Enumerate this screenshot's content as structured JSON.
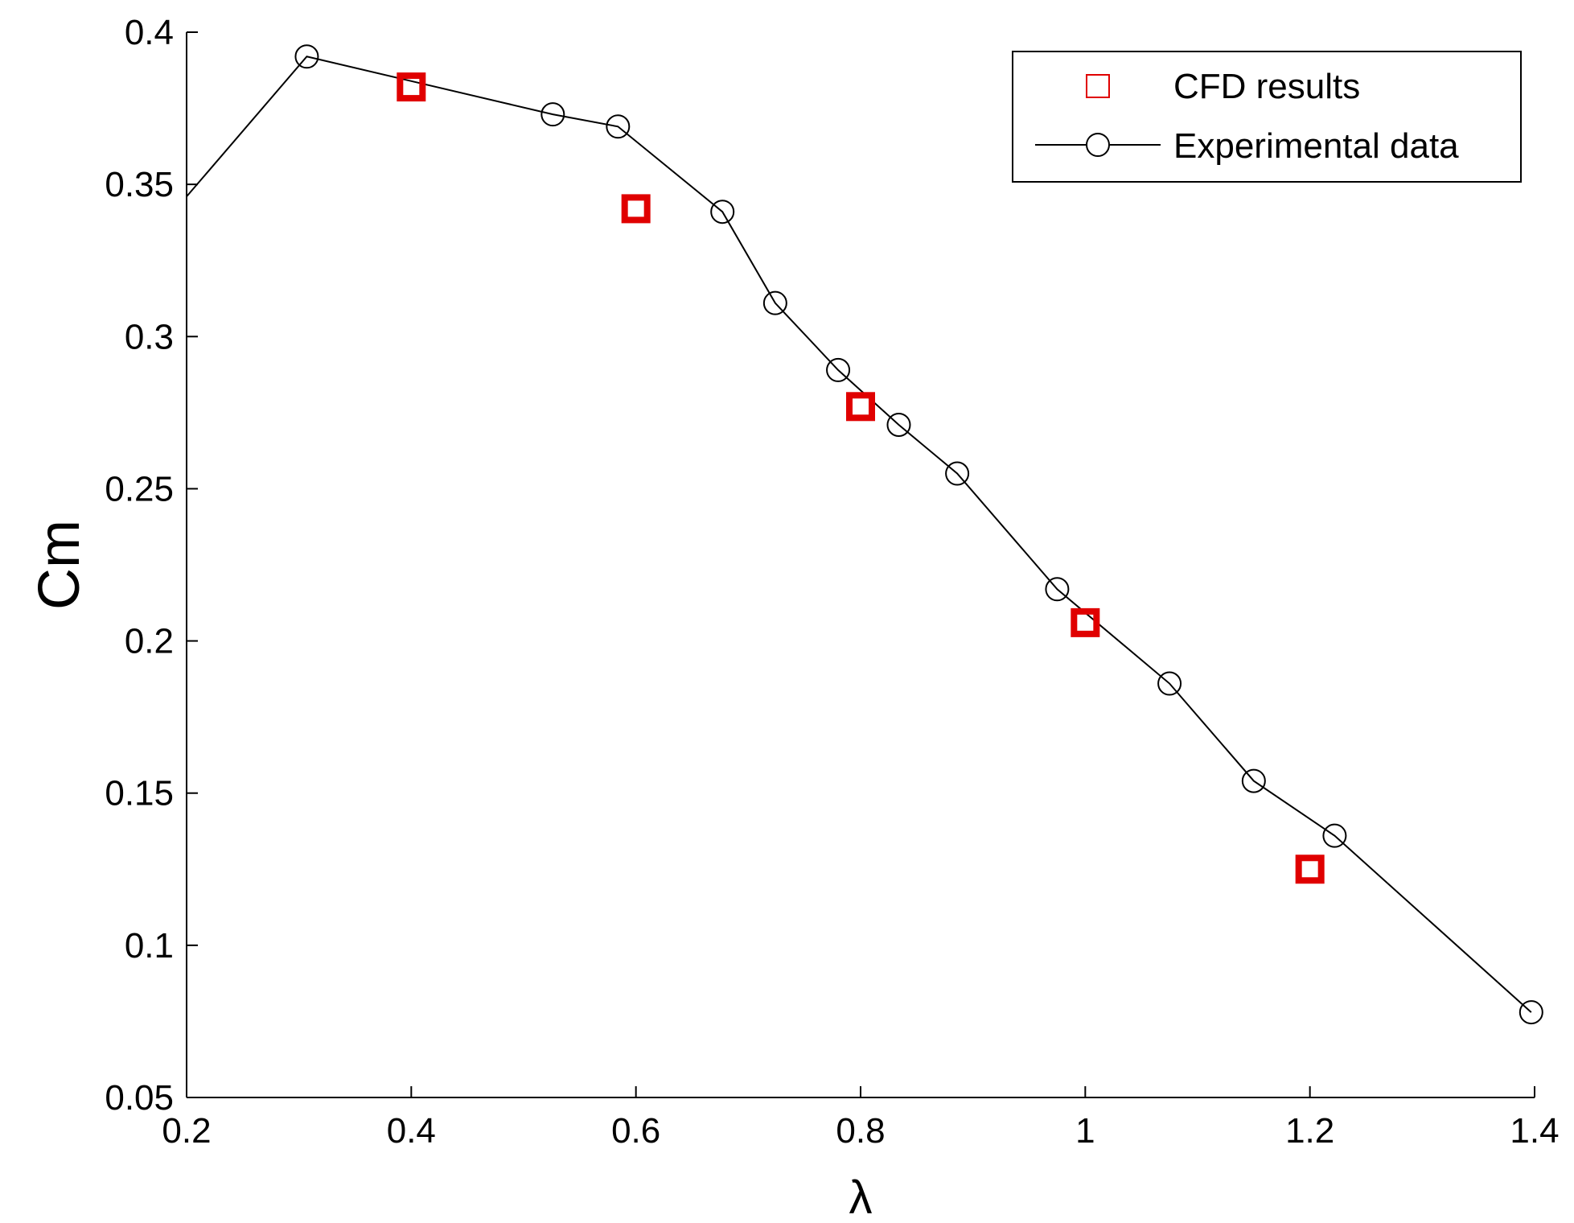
{
  "chart_data": {
    "type": "line",
    "title": "",
    "xlabel": "λ",
    "ylabel": "Cm",
    "xlim": [
      0.2,
      1.4
    ],
    "ylim": [
      0.05,
      0.4
    ],
    "xticks": [
      0.2,
      0.4,
      0.6,
      0.8,
      1.0,
      1.2,
      1.4
    ],
    "xtick_labels": [
      "0.2",
      "0.4",
      "0.6",
      "0.8",
      "1",
      "1.2",
      "1.4"
    ],
    "yticks": [
      0.05,
      0.1,
      0.15,
      0.2,
      0.25,
      0.3,
      0.35,
      0.4
    ],
    "ytick_labels": [
      "0.05",
      "0.1",
      "0.15",
      "0.2",
      "0.25",
      "0.3",
      "0.35",
      "0.4"
    ],
    "grid": false,
    "legend_position": "top-right",
    "series": [
      {
        "name": "CFD results",
        "style": "markers",
        "marker": "square",
        "color": "#e00000",
        "x": [
          0.4,
          0.6,
          0.8,
          1.0,
          1.2
        ],
        "y": [
          0.382,
          0.342,
          0.277,
          0.206,
          0.125
        ]
      },
      {
        "name": "Experimental data",
        "style": "line-markers",
        "marker": "circle",
        "color": "#000000",
        "x": [
          0.2,
          0.307,
          0.526,
          0.584,
          0.677,
          0.724,
          0.78,
          0.834,
          0.886,
          0.975,
          1.075,
          1.15,
          1.222,
          1.397
        ],
        "y": [
          0.346,
          0.392,
          0.373,
          0.369,
          0.341,
          0.311,
          0.289,
          0.271,
          0.255,
          0.217,
          0.186,
          0.154,
          0.136,
          0.078
        ]
      }
    ]
  }
}
